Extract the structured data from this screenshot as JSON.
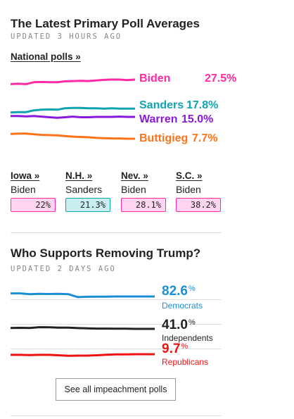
{
  "primary": {
    "title": "The Latest Primary Poll Averages",
    "updated": "UPDATED 3 HOURS AGO",
    "national_link": "National polls »",
    "candidates": [
      {
        "name": "Biden",
        "value": "27.5%",
        "color": "#ff2aa4",
        "trend": [
          26.0,
          26.1,
          26.0,
          26.6,
          26.7,
          26.6,
          26.6,
          26.9,
          27.0,
          27.1,
          27.0,
          27.2,
          27.4,
          27.5,
          27.5,
          27.3,
          27.5
        ]
      },
      {
        "name": "Sanders",
        "value": "17.8%",
        "color": "#0fa3b1",
        "trend": [
          16.5,
          16.6,
          16.6,
          17.2,
          17.4,
          17.5,
          17.4,
          17.9,
          18.0,
          18.0,
          17.9,
          17.9,
          17.8,
          17.9,
          17.8,
          17.8,
          17.8
        ]
      },
      {
        "name": "Warren",
        "value": "15.0%",
        "color": "#8a1ad9",
        "trend": [
          15.3,
          15.3,
          15.2,
          15.3,
          15.1,
          14.9,
          14.7,
          14.9,
          15.1,
          14.9,
          14.9,
          15.0,
          15.0,
          15.0,
          15.1,
          15.0,
          15.0
        ]
      },
      {
        "name": "Buttigieg",
        "value": "7.7%",
        "color": "#ff7419",
        "trend": [
          9.3,
          9.4,
          9.4,
          9.2,
          9.0,
          8.9,
          8.8,
          8.6,
          8.4,
          8.3,
          8.2,
          8.0,
          7.9,
          7.8,
          7.8,
          7.7,
          7.7
        ]
      }
    ],
    "states": [
      {
        "name": "Iowa »",
        "leader": "Biden",
        "pct": "22%",
        "bg": "#fdd5f0",
        "border": "#ff2aa4"
      },
      {
        "name": "N.H. »",
        "leader": "Sanders",
        "pct": "21.3%",
        "bg": "#c8eef1",
        "border": "#0fa3b1"
      },
      {
        "name": "Nev. »",
        "leader": "Biden",
        "pct": "28.1%",
        "bg": "#fdd5f0",
        "border": "#ff2aa4"
      },
      {
        "name": "S.C. »",
        "leader": "Biden",
        "pct": "38.2%",
        "bg": "#fdd5f0",
        "border": "#ff2aa4"
      }
    ]
  },
  "impeachment": {
    "title": "Who Supports Removing Trump?",
    "updated": "UPDATED 2 DAYS AGO",
    "groups": [
      {
        "value": "82.6",
        "pct_sign": "%",
        "label": "Democrats",
        "color": "#1b8ed6",
        "label_color": "#1b8ed6",
        "trend": [
          84.6,
          84.6,
          84.1,
          84.3,
          84.2,
          84.3,
          84.1,
          82.2,
          82.4,
          82.5,
          82.5,
          82.6,
          82.6,
          82.6,
          82.6,
          82.6
        ]
      },
      {
        "value": "41.0",
        "pct_sign": "%",
        "label": "Independents",
        "color": "#222222",
        "label_color": "#222222",
        "trend": [
          41.6,
          41.7,
          41.6,
          42.1,
          42.0,
          41.8,
          41.8,
          41.5,
          41.3,
          41.2,
          41.2,
          41.1,
          41.1,
          41.0,
          41.0,
          41.0
        ]
      },
      {
        "value": "9.7",
        "pct_sign": "%",
        "label": "Republicans",
        "color": "#ee1111",
        "label_color": "#ee1111",
        "trend": [
          9.3,
          9.3,
          9.1,
          9.3,
          9.3,
          9.0,
          8.7,
          8.8,
          8.8,
          9.0,
          9.4,
          9.6,
          9.6,
          9.7,
          9.7,
          9.7
        ]
      }
    ],
    "button_label": "See all impeachment polls"
  }
}
